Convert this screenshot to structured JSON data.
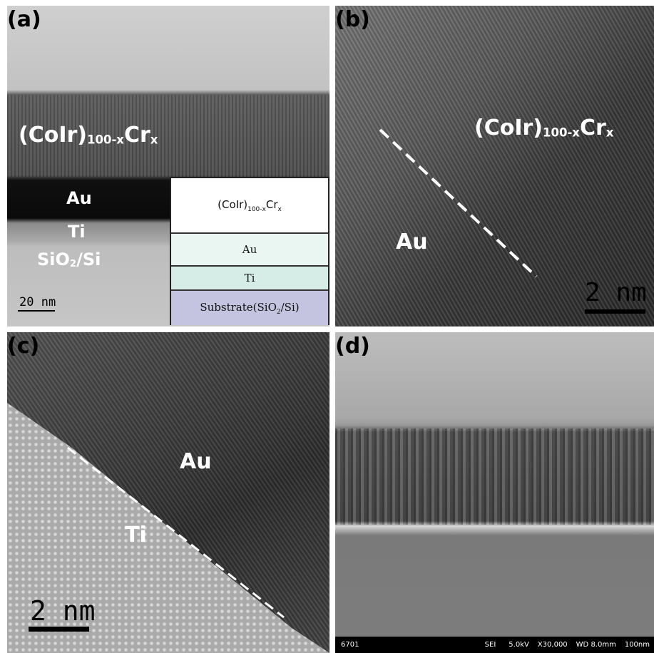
{
  "panels": [
    {
      "label": "(a)",
      "annotations": [
        [
          "(CoIr)",
          "100-x",
          "Cr",
          "x"
        ],
        [
          "Au"
        ],
        [
          "Ti"
        ],
        [
          "SiO",
          "2",
          "/Si"
        ]
      ],
      "scale_bar": "20 nm",
      "inset_layers": [
        [
          "(CoIr)",
          "100-x",
          "Cr",
          "x"
        ],
        [
          "Au"
        ],
        [
          "Ti"
        ],
        [
          "Substrate(SiO",
          "2",
          "/Si)"
        ]
      ]
    },
    {
      "label": "(b)",
      "annotations": [
        [
          "(CoIr)",
          "100-x",
          "Cr",
          "x"
        ],
        [
          "Au"
        ]
      ],
      "scale_bar": "2 nm"
    },
    {
      "label": "(c)",
      "annotations": [
        [
          "Au"
        ],
        [
          "Ti"
        ]
      ],
      "scale_bar": "2 nm"
    },
    {
      "label": "(d)",
      "info_bar": [
        "6701",
        "SEI",
        "5.0kV",
        "X30,000",
        "WD 8.0mm",
        "100nm"
      ]
    }
  ]
}
